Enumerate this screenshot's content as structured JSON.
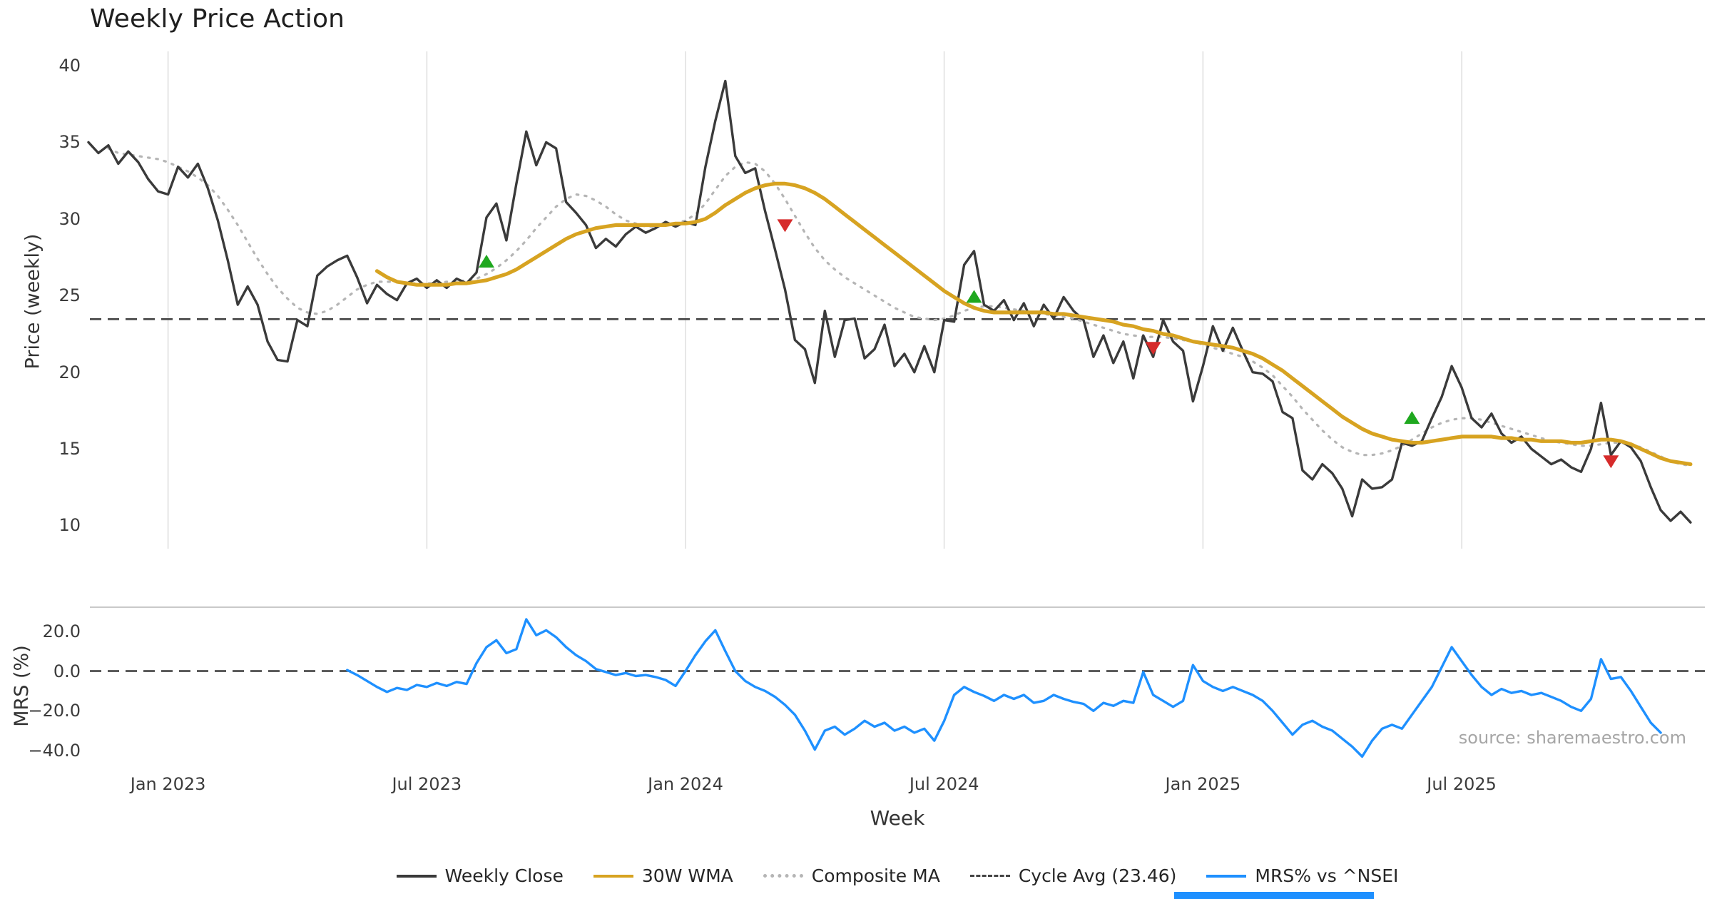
{
  "source_note": "source: sharemaestro.com",
  "legend": {
    "items": [
      {
        "label": "Weekly Close",
        "color": "#3a3a3a",
        "line": "solid"
      },
      {
        "label": "30W WMA",
        "color": "#d7a321",
        "line": "solid"
      },
      {
        "label": "Composite MA",
        "color": "#b5b5b5",
        "line": "dotted"
      },
      {
        "label": "Cycle Avg (23.46)",
        "color": "#444444",
        "line": "dashed"
      },
      {
        "label": "MRS% vs ^NSEI",
        "color": "#1e90ff",
        "line": "solid"
      }
    ]
  },
  "chart_data": [
    {
      "type": "line",
      "panel": "price",
      "title": "Weekly Price Action",
      "xlabel": "",
      "ylabel": "Price (weekly)",
      "ylim": [
        8.5,
        41.3
      ],
      "grid": "vertical-only",
      "yticks": [
        {
          "value": 40,
          "label": "40"
        },
        {
          "value": 35,
          "label": "35"
        },
        {
          "value": 30,
          "label": "30"
        },
        {
          "value": 25,
          "label": "25"
        },
        {
          "value": 20,
          "label": "20"
        },
        {
          "value": 15,
          "label": "15"
        },
        {
          "value": 10,
          "label": "10"
        }
      ],
      "x_ticks": [
        {
          "index": 8,
          "label": "Jan 2023"
        },
        {
          "index": 34,
          "label": "Jul 2023"
        },
        {
          "index": 60,
          "label": "Jan 2024"
        },
        {
          "index": 86,
          "label": "Jul 2024"
        },
        {
          "index": 112,
          "label": "Jan 2025"
        },
        {
          "index": 138,
          "label": "Jul 2025"
        }
      ],
      "x_total_weeks": 162,
      "series": [
        {
          "name": "Weekly Close",
          "color": "#3a3a3a",
          "style": "solid",
          "width": 3.4,
          "z": 3,
          "start_index": 0,
          "values": [
            35.0,
            34.3,
            34.8,
            33.6,
            34.4,
            33.7,
            32.6,
            31.8,
            31.6,
            33.4,
            32.7,
            33.6,
            32.0,
            29.9,
            27.3,
            24.4,
            25.6,
            24.4,
            22.0,
            20.8,
            20.7,
            23.4,
            23.0,
            26.3,
            26.9,
            27.3,
            27.6,
            26.2,
            24.5,
            25.7,
            25.1,
            24.7,
            25.8,
            26.1,
            25.5,
            26.0,
            25.5,
            26.1,
            25.8,
            26.5,
            30.1,
            31.0,
            28.6,
            32.3,
            35.7,
            33.5,
            35.0,
            34.6,
            31.1,
            30.4,
            29.6,
            28.1,
            28.7,
            28.2,
            29.0,
            29.5,
            29.1,
            29.4,
            29.8,
            29.5,
            29.8,
            29.6,
            33.4,
            36.4,
            39.0,
            34.1,
            33.0,
            33.3,
            30.5,
            28.0,
            25.4,
            22.1,
            21.5,
            19.3,
            24.0,
            21.0,
            23.4,
            23.5,
            20.9,
            21.5,
            23.1,
            20.4,
            21.2,
            20.0,
            21.7,
            20.0,
            23.4,
            23.3,
            27.0,
            27.9,
            24.4,
            24.0,
            24.7,
            23.4,
            24.5,
            23.0,
            24.4,
            23.5,
            24.9,
            24.0,
            23.4,
            21.0,
            22.4,
            20.6,
            22.0,
            19.6,
            22.4,
            21.0,
            23.4,
            22.0,
            21.4,
            18.1,
            20.4,
            23.0,
            21.4,
            22.9,
            21.4,
            20.0,
            19.9,
            19.4,
            17.4,
            17.0,
            13.6,
            13.0,
            14.0,
            13.4,
            12.4,
            10.6,
            13.0,
            12.4,
            12.5,
            13.0,
            15.4,
            15.2,
            15.5,
            17.0,
            18.4,
            20.4,
            19.0,
            17.0,
            16.4,
            17.3,
            16.0,
            15.4,
            15.8,
            15.0,
            14.5,
            14.0,
            14.3,
            13.8,
            13.5,
            15.0,
            18.0,
            14.6,
            15.5,
            15.1,
            14.2,
            12.5,
            11.0,
            10.3,
            10.9,
            10.2
          ]
        },
        {
          "name": "30W WMA",
          "color": "#d7a321",
          "style": "solid",
          "width": 5.2,
          "z": 4,
          "start_index": 29,
          "values": [
            26.6,
            26.2,
            25.9,
            25.8,
            25.7,
            25.7,
            25.7,
            25.7,
            25.8,
            25.8,
            25.9,
            26.0,
            26.2,
            26.4,
            26.7,
            27.1,
            27.5,
            27.9,
            28.3,
            28.7,
            29.0,
            29.2,
            29.4,
            29.5,
            29.6,
            29.6,
            29.6,
            29.6,
            29.6,
            29.6,
            29.7,
            29.7,
            29.8,
            30.0,
            30.4,
            30.9,
            31.3,
            31.7,
            32.0,
            32.2,
            32.3,
            32.3,
            32.2,
            32.0,
            31.7,
            31.3,
            30.8,
            30.3,
            29.8,
            29.3,
            28.8,
            28.3,
            27.8,
            27.3,
            26.8,
            26.3,
            25.8,
            25.3,
            24.9,
            24.5,
            24.2,
            24.0,
            23.9,
            23.9,
            23.9,
            23.9,
            23.9,
            23.9,
            23.8,
            23.8,
            23.7,
            23.6,
            23.5,
            23.4,
            23.3,
            23.1,
            23.0,
            22.8,
            22.7,
            22.5,
            22.4,
            22.2,
            22.0,
            21.9,
            21.8,
            21.7,
            21.6,
            21.4,
            21.2,
            20.9,
            20.5,
            20.1,
            19.6,
            19.1,
            18.6,
            18.1,
            17.6,
            17.1,
            16.7,
            16.3,
            16.0,
            15.8,
            15.6,
            15.5,
            15.4,
            15.4,
            15.5,
            15.6,
            15.7,
            15.8,
            15.8,
            15.8,
            15.8,
            15.7,
            15.7,
            15.6,
            15.6,
            15.5,
            15.5,
            15.5,
            15.4,
            15.4,
            15.5,
            15.6,
            15.6,
            15.5,
            15.3,
            15.0,
            14.7,
            14.4,
            14.2,
            14.1,
            14.0
          ]
        },
        {
          "name": "Composite MA",
          "color": "#b5b5b5",
          "style": "dotted",
          "width": 3.2,
          "z": 2,
          "start_index": 2,
          "values": [
            34.6,
            34.3,
            34.2,
            34.1,
            34.0,
            33.9,
            33.7,
            33.4,
            33.1,
            32.7,
            32.2,
            31.5,
            30.6,
            29.6,
            28.5,
            27.4,
            26.4,
            25.5,
            24.8,
            24.2,
            23.9,
            23.8,
            24.0,
            24.4,
            24.9,
            25.4,
            25.7,
            25.9,
            25.9,
            25.9,
            25.8,
            25.8,
            25.8,
            25.8,
            25.9,
            25.9,
            26.0,
            26.1,
            26.4,
            26.8,
            27.3,
            27.9,
            28.6,
            29.4,
            30.1,
            30.8,
            31.3,
            31.6,
            31.5,
            31.2,
            30.8,
            30.3,
            29.9,
            29.7,
            29.5,
            29.5,
            29.6,
            29.7,
            29.9,
            30.3,
            31.0,
            31.9,
            32.8,
            33.4,
            33.7,
            33.6,
            33.1,
            32.3,
            31.3,
            30.2,
            29.1,
            28.1,
            27.3,
            26.7,
            26.2,
            25.8,
            25.4,
            25.0,
            24.6,
            24.2,
            23.9,
            23.6,
            23.5,
            23.4,
            23.5,
            23.7,
            24.0,
            24.2,
            24.3,
            24.3,
            24.2,
            24.1,
            24.0,
            23.9,
            23.8,
            23.7,
            23.6,
            23.5,
            23.3,
            23.1,
            22.9,
            22.7,
            22.5,
            22.4,
            22.3,
            22.3,
            22.3,
            22.2,
            22.1,
            22.0,
            21.8,
            21.6,
            21.4,
            21.2,
            21.0,
            20.7,
            20.3,
            19.8,
            19.1,
            18.4,
            17.6,
            16.9,
            16.2,
            15.6,
            15.1,
            14.8,
            14.6,
            14.6,
            14.7,
            14.9,
            15.2,
            15.6,
            16.0,
            16.4,
            16.7,
            16.9,
            17.0,
            17.0,
            16.9,
            16.7,
            16.5,
            16.3,
            16.1,
            15.9,
            15.7,
            15.5,
            15.4,
            15.3,
            15.2,
            15.2,
            15.3,
            15.4,
            15.4,
            15.3,
            15.1,
            14.8,
            14.5,
            14.2,
            14.0,
            13.9
          ]
        },
        {
          "name": "Cycle Avg (23.46)",
          "color": "#444444",
          "style": "dashed",
          "width": 2.6,
          "z": 1,
          "constant": 23.46
        }
      ],
      "markers": [
        {
          "shape": "triangle-up",
          "signal": "buy",
          "color": "#1fa81f",
          "index": 40,
          "value": 27.2
        },
        {
          "shape": "triangle-down",
          "signal": "sell",
          "color": "#d62b2b",
          "index": 70,
          "value": 29.6
        },
        {
          "shape": "triangle-up",
          "signal": "buy",
          "color": "#1fa81f",
          "index": 89,
          "value": 24.9
        },
        {
          "shape": "triangle-down",
          "signal": "sell",
          "color": "#d62b2b",
          "index": 107,
          "value": 21.6
        },
        {
          "shape": "triangle-up",
          "signal": "buy",
          "color": "#1fa81f",
          "index": 133,
          "value": 17.0
        },
        {
          "shape": "triangle-down",
          "signal": "sell",
          "color": "#d62b2b",
          "index": 153,
          "value": 14.2
        }
      ]
    },
    {
      "type": "line",
      "panel": "relative-strength",
      "xlabel": "Week",
      "ylabel": "MRS (%)",
      "ylim": [
        -47,
        32
      ],
      "yticks": [
        {
          "value": 20,
          "label": "20.0"
        },
        {
          "value": 0,
          "label": "0.0"
        },
        {
          "value": -20,
          "label": "−20.0"
        },
        {
          "value": -40,
          "label": "−40.0"
        }
      ],
      "zero_line": {
        "value": 0,
        "style": "dashed",
        "color": "#3a3a3a"
      },
      "series": [
        {
          "name": "MRS% vs ^NSEI",
          "color": "#1e90ff",
          "style": "solid",
          "width": 3.4,
          "z": 1,
          "start_index": 26,
          "values": [
            0.5,
            -2,
            -5,
            -8,
            -10.5,
            -8.5,
            -9.5,
            -7,
            -8,
            -6,
            -7.5,
            -5.5,
            -6.5,
            4,
            12,
            15.5,
            9,
            11,
            26,
            18,
            20.5,
            17,
            12,
            8,
            5,
            1,
            -0.5,
            -2,
            -1,
            -2.5,
            -2,
            -3,
            -4.5,
            -7.5,
            0,
            8,
            15,
            20.5,
            10,
            0,
            -5,
            -8,
            -10,
            -13,
            -17,
            -22,
            -30,
            -39.5,
            -30,
            -28,
            -32,
            -29,
            -25,
            -28,
            -26,
            -30,
            -28,
            -31,
            -29,
            -35,
            -25,
            -12,
            -8,
            -10.5,
            -12.5,
            -15,
            -12,
            -14,
            -12,
            -16,
            -15,
            -12,
            -14,
            -15.5,
            -16.5,
            -20,
            -16,
            -17.5,
            -15,
            -16,
            -0.5,
            -12,
            -15,
            -18,
            -15,
            3,
            -5,
            -8,
            -10,
            -8,
            -10,
            -12,
            -15,
            -20,
            -26,
            -32,
            -27,
            -25,
            -28,
            -30,
            -34,
            -38,
            -43,
            -35,
            -29,
            -27,
            -29,
            -22,
            -15,
            -8,
            2,
            12,
            5,
            -2,
            -8,
            -12,
            -9,
            -11,
            -10,
            -12,
            -11,
            -13,
            -15,
            -18,
            -20,
            -14,
            6,
            -4,
            -3,
            -10,
            -18,
            -26,
            -31
          ]
        }
      ]
    }
  ]
}
